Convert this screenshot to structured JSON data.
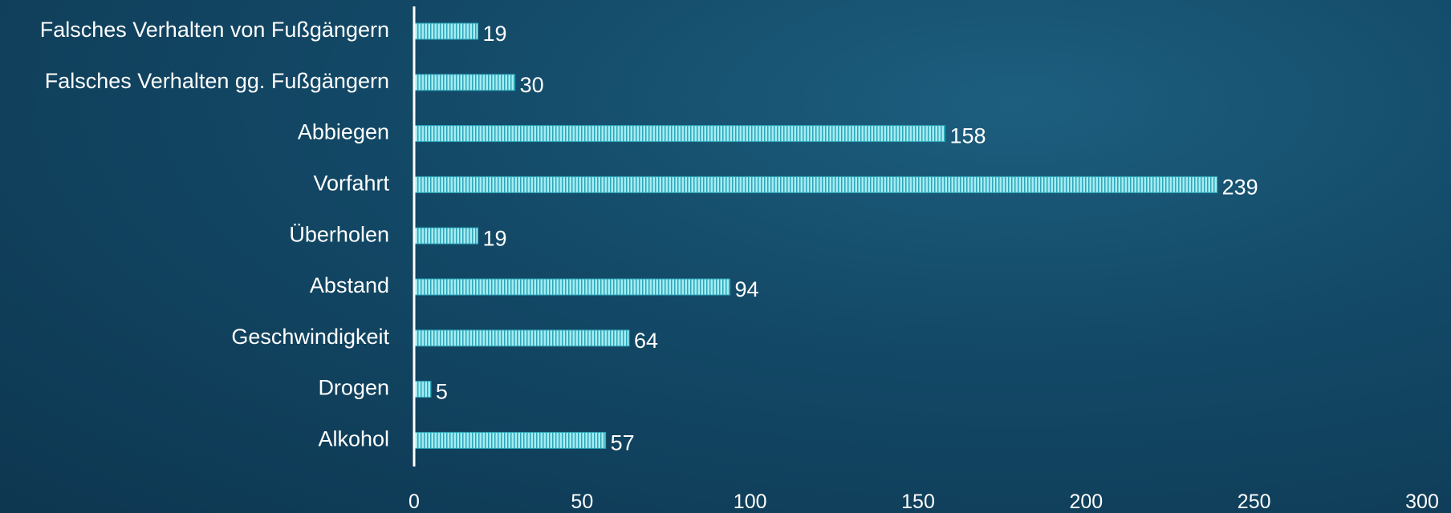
{
  "chart_data": {
    "type": "bar",
    "orientation": "horizontal",
    "categories": [
      "Falsches Verhalten von Fußgängern",
      "Falsches Verhalten gg. Fußgängern",
      "Abbiegen",
      "Vorfahrt",
      "Überholen",
      "Abstand",
      "Geschwindigkeit",
      "Drogen",
      "Alkohol"
    ],
    "values": [
      19,
      30,
      158,
      239,
      19,
      94,
      64,
      5,
      57
    ],
    "value_labels": [
      "19",
      "30",
      "158",
      "239",
      "19",
      "94",
      "64",
      "5",
      "57"
    ],
    "xlim": [
      0,
      300
    ],
    "xticks": [
      0,
      50,
      100,
      150,
      200,
      250,
      300
    ],
    "xtick_labels": [
      "0",
      "50",
      "100",
      "150",
      "200",
      "250",
      "300"
    ],
    "grid": false,
    "title": "",
    "xlabel": "",
    "ylabel": "",
    "colors": {
      "bar_fill": "#a6ecf3",
      "bar_stripe": "#2aa6b8",
      "axis": "#ffffff",
      "text": "#ffffff"
    }
  }
}
